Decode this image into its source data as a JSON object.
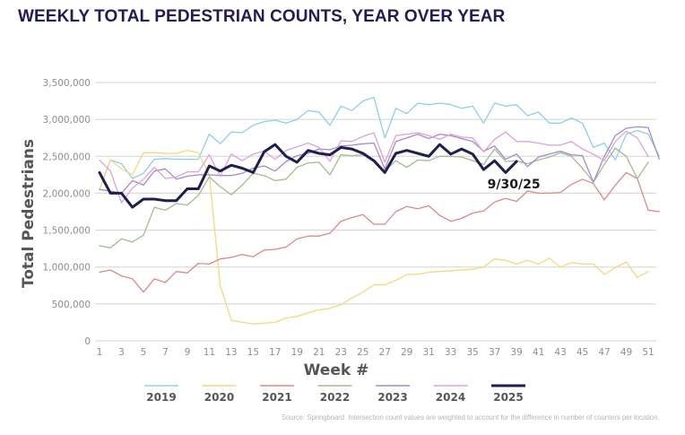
{
  "chart_data": {
    "type": "line",
    "title": "WEEKLY TOTAL PEDESTRIAN COUNTS, YEAR OVER YEAR",
    "xlabel": "Week #",
    "ylabel": "Total Pedestrians",
    "ylim": [
      0,
      3500000
    ],
    "xlim": [
      1,
      52
    ],
    "grid": true,
    "legend_position": "bottom",
    "y_ticks": [
      0,
      500000,
      1000000,
      1500000,
      2000000,
      2500000,
      3000000,
      3500000
    ],
    "y_tick_labels": [
      "0",
      "500,000",
      "1,000,000",
      "1,500,000",
      "2,000,000",
      "2,500,000",
      "3,000,000",
      "3,500,000"
    ],
    "x_ticks": [
      1,
      3,
      5,
      7,
      9,
      11,
      13,
      15,
      17,
      19,
      21,
      23,
      25,
      27,
      29,
      31,
      33,
      35,
      37,
      39,
      41,
      43,
      45,
      47,
      49,
      51
    ],
    "x_tick_labels": [
      "1",
      "3",
      "5",
      "7",
      "9",
      "11",
      "13",
      "15",
      "17",
      "19",
      "21",
      "23",
      "25",
      "27",
      "29",
      "31",
      "33",
      "35",
      "37",
      "39",
      "41",
      "43",
      "45",
      "47",
      "49",
      "51"
    ],
    "annotation": {
      "text": "9/30/25",
      "week": 39,
      "series": "2025"
    },
    "series": [
      {
        "name": "2019",
        "color": "#8ecfe8",
        "width": 1.3,
        "values": [
          2050000,
          2450000,
          2400000,
          2200000,
          2270000,
          2460000,
          2470000,
          2460000,
          2460000,
          2460000,
          2800000,
          2670000,
          2830000,
          2820000,
          2920000,
          2970000,
          2990000,
          2950000,
          3000000,
          3120000,
          3100000,
          2920000,
          3180000,
          3120000,
          3250000,
          3300000,
          2750000,
          3150000,
          3080000,
          3220000,
          3200000,
          3220000,
          3200000,
          3150000,
          3180000,
          2950000,
          3220000,
          3180000,
          3200000,
          3050000,
          3100000,
          2950000,
          2950000,
          3020000,
          2950000,
          2620000,
          2680000,
          2450000,
          2800000,
          2850000,
          2800000,
          2500000
        ]
      },
      {
        "name": "2020",
        "color": "#f5d77e",
        "width": 1.3,
        "values": [
          2050000,
          2450000,
          2330000,
          2250000,
          2550000,
          2550000,
          2540000,
          2540000,
          2580000,
          2550000,
          2250000,
          750000,
          280000,
          250000,
          230000,
          240000,
          250000,
          310000,
          330000,
          380000,
          420000,
          440000,
          490000,
          580000,
          660000,
          760000,
          760000,
          820000,
          900000,
          900000,
          930000,
          940000,
          950000,
          960000,
          970000,
          1000000,
          1110000,
          1090000,
          1040000,
          1090000,
          1040000,
          1120000,
          1000000,
          1060000,
          1040000,
          1040000,
          900000,
          990000,
          1070000,
          860000,
          940000,
          null
        ]
      },
      {
        "name": "2021",
        "color": "#d88a8c",
        "width": 1.3,
        "values": [
          930000,
          960000,
          880000,
          840000,
          660000,
          840000,
          790000,
          940000,
          920000,
          1050000,
          1040000,
          1110000,
          1130000,
          1170000,
          1140000,
          1230000,
          1240000,
          1270000,
          1380000,
          1420000,
          1420000,
          1460000,
          1620000,
          1670000,
          1710000,
          1580000,
          1580000,
          1750000,
          1820000,
          1790000,
          1830000,
          1700000,
          1620000,
          1660000,
          1730000,
          1760000,
          1880000,
          1930000,
          1890000,
          2030000,
          2000000,
          2000000,
          2010000,
          2120000,
          2190000,
          2130000,
          1910000,
          2110000,
          2280000,
          2200000,
          1770000,
          1750000
        ]
      },
      {
        "name": "2022",
        "color": "#a3bc8e",
        "width": 1.3,
        "values": [
          1290000,
          1260000,
          1380000,
          1340000,
          1430000,
          1810000,
          1770000,
          1860000,
          1840000,
          1970000,
          2220000,
          2090000,
          1980000,
          2110000,
          2270000,
          2240000,
          2170000,
          2190000,
          2350000,
          2410000,
          2420000,
          2250000,
          2520000,
          2510000,
          2520000,
          2440000,
          2300000,
          2440000,
          2350000,
          2450000,
          2440000,
          2500000,
          2500000,
          2490000,
          2440000,
          2390000,
          2600000,
          2430000,
          2440000,
          2400000,
          2450000,
          2490000,
          2550000,
          2500000,
          2340000,
          2150000,
          2390000,
          2610000,
          2500000,
          2200000,
          2420000,
          null
        ]
      },
      {
        "name": "2023",
        "color": "#a58bc6",
        "width": 1.3,
        "values": [
          2050000,
          2030000,
          2000000,
          2170000,
          2110000,
          2300000,
          2330000,
          2190000,
          2230000,
          2250000,
          2250000,
          2240000,
          2240000,
          2270000,
          2340000,
          2370000,
          2300000,
          2430000,
          2510000,
          2540000,
          2600000,
          2590000,
          2640000,
          2650000,
          2670000,
          2680000,
          2330000,
          2700000,
          2750000,
          2800000,
          2740000,
          2800000,
          2780000,
          2740000,
          2700000,
          2570000,
          2640000,
          2460000,
          2530000,
          2360000,
          2490000,
          2530000,
          2570000,
          2520000,
          2510000,
          2150000,
          2500000,
          2780000,
          2880000,
          2900000,
          2890000,
          2460000
        ]
      },
      {
        "name": "2024",
        "color": "#dba4d6",
        "width": 1.3,
        "values": [
          2450000,
          2300000,
          1870000,
          2070000,
          2190000,
          2350000,
          2200000,
          2220000,
          2290000,
          2290000,
          2520000,
          2230000,
          2530000,
          2440000,
          2530000,
          2570000,
          2460000,
          2580000,
          2630000,
          2680000,
          2620000,
          2430000,
          2710000,
          2700000,
          2770000,
          2820000,
          2420000,
          2780000,
          2800000,
          2820000,
          2780000,
          2730000,
          2800000,
          2760000,
          2750000,
          2560000,
          2730000,
          2830000,
          2700000,
          2700000,
          2680000,
          2650000,
          2650000,
          2700000,
          2600000,
          2530000,
          2440000,
          2700000,
          2840000,
          2750000,
          2500000,
          null
        ]
      },
      {
        "name": "2025",
        "color": "#1e1f4e",
        "width": 3,
        "values": [
          2280000,
          2000000,
          2000000,
          1810000,
          1920000,
          1920000,
          1900000,
          1900000,
          2060000,
          2060000,
          2370000,
          2300000,
          2380000,
          2340000,
          2280000,
          2560000,
          2660000,
          2500000,
          2420000,
          2580000,
          2540000,
          2520000,
          2620000,
          2600000,
          2540000,
          2440000,
          2280000,
          2540000,
          2580000,
          2540000,
          2500000,
          2660000,
          2530000,
          2600000,
          2530000,
          2320000,
          2440000,
          2280000,
          2430000
        ]
      }
    ]
  },
  "footer": {
    "source": "Source: Springboard. Intersection count values are weighted to account for the difference in number of counters per location."
  }
}
